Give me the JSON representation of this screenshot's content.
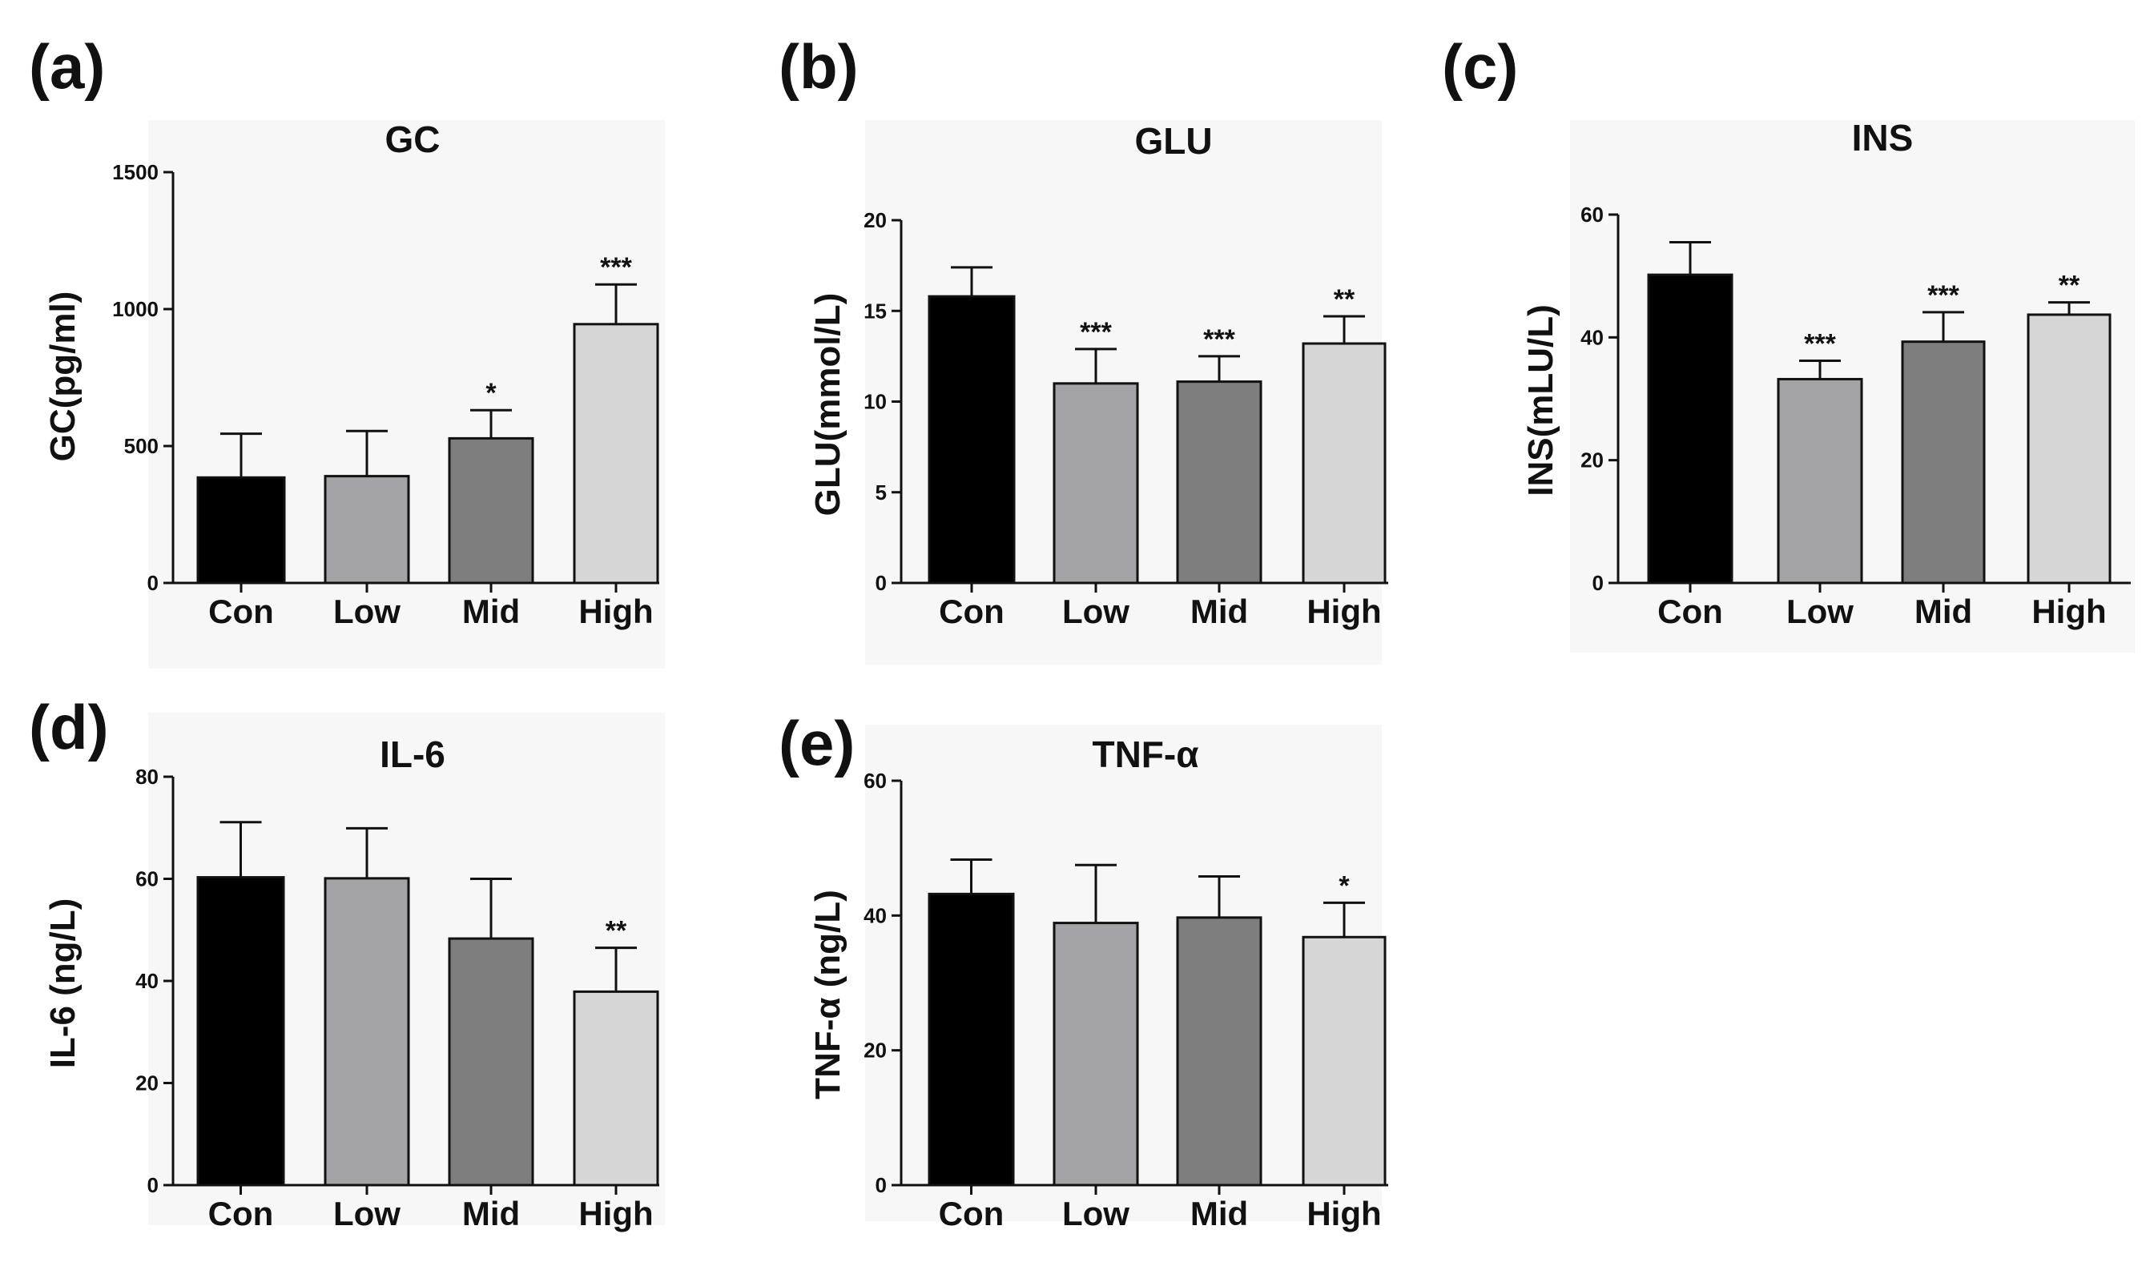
{
  "figure": {
    "bar_colors": [
      "#000000",
      "#a3a3a8",
      "#7e7e7e",
      "#d6d6d6"
    ],
    "panels_order": [
      "a",
      "b",
      "c",
      "d",
      "e"
    ]
  },
  "chart_data": [
    {
      "panel": "(a)",
      "type": "bar",
      "title": "GC",
      "ylabel": "GC(pg/ml)",
      "categories": [
        "Con",
        "Low",
        "Mid",
        "High"
      ],
      "values": [
        385,
        390,
        528,
        945
      ],
      "errors": [
        160,
        165,
        103,
        145
      ],
      "significance": [
        "",
        "",
        "*",
        "***"
      ],
      "ylim": [
        0,
        1500
      ],
      "yticks": [
        0,
        500,
        1000,
        1500
      ]
    },
    {
      "panel": "(b)",
      "type": "bar",
      "title": "GLU",
      "ylabel": "GLU(mmol/L)",
      "categories": [
        "Con",
        "Low",
        "Mid",
        "High"
      ],
      "values": [
        15.8,
        11.0,
        11.1,
        13.2
      ],
      "errors": [
        1.6,
        1.9,
        1.4,
        1.5
      ],
      "significance": [
        "",
        "***",
        "***",
        "**"
      ],
      "ylim": [
        0,
        20
      ],
      "yticks": [
        0,
        5,
        10,
        15,
        20
      ]
    },
    {
      "panel": "(c)",
      "type": "bar",
      "title": "INS",
      "ylabel": "INS(mLU/L)",
      "categories": [
        "Con",
        "Low",
        "Mid",
        "High"
      ],
      "values": [
        50.2,
        33.2,
        39.3,
        43.7
      ],
      "errors": [
        5.3,
        3.0,
        4.8,
        2.0
      ],
      "significance": [
        "",
        "***",
        "***",
        "**"
      ],
      "ylim": [
        0,
        60
      ],
      "yticks": [
        0,
        20,
        40,
        60
      ]
    },
    {
      "panel": "(d)",
      "type": "bar",
      "title": "IL-6",
      "ylabel": "IL-6 (ng/L)",
      "categories": [
        "Con",
        "Low",
        "Mid",
        "High"
      ],
      "values": [
        60.3,
        60.1,
        48.3,
        37.9
      ],
      "errors": [
        10.8,
        9.8,
        11.7,
        8.6
      ],
      "significance": [
        "",
        "",
        "",
        "**"
      ],
      "ylim": [
        0,
        80
      ],
      "yticks": [
        0,
        20,
        40,
        60,
        80
      ]
    },
    {
      "panel": "(e)",
      "type": "bar",
      "title": "TNF-α",
      "ylabel": "TNF-α (ng/L)",
      "categories": [
        "Con",
        "Low",
        "Mid",
        "High"
      ],
      "values": [
        43.2,
        38.9,
        39.7,
        36.8
      ],
      "errors": [
        5.1,
        8.6,
        6.1,
        5.1
      ],
      "significance": [
        "",
        "",
        "",
        "*"
      ],
      "ylim": [
        0,
        60
      ],
      "yticks": [
        0,
        20,
        40,
        60
      ]
    }
  ]
}
